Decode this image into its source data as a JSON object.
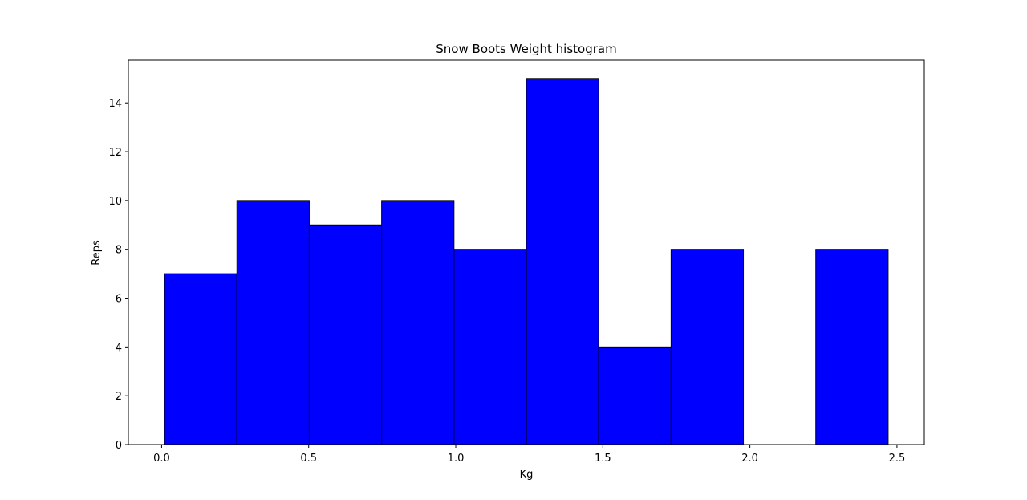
{
  "chart_data": {
    "type": "bar",
    "title": "Snow Boots Weight histogram",
    "xlabel": "Kg",
    "ylabel": "Reps",
    "bin_edges": [
      0.01,
      0.256,
      0.502,
      0.748,
      0.994,
      1.24,
      1.486,
      1.732,
      1.978,
      2.224,
      2.47
    ],
    "values": [
      7,
      10,
      9,
      10,
      8,
      15,
      4,
      8,
      0,
      8
    ],
    "xlim": [
      -0.113,
      2.593
    ],
    "ylim": [
      0,
      15.75
    ],
    "xticks": [
      0.0,
      0.5,
      1.0,
      1.5,
      2.0,
      2.5
    ],
    "xtick_labels": [
      "0.0",
      "0.5",
      "1.0",
      "1.5",
      "2.0",
      "2.5"
    ],
    "yticks": [
      0,
      2,
      4,
      6,
      8,
      10,
      12,
      14
    ],
    "ytick_labels": [
      "0",
      "2",
      "4",
      "6",
      "8",
      "10",
      "12",
      "14"
    ],
    "grid": false,
    "bar_color": "#0000ff",
    "edge_color": "#000000"
  }
}
